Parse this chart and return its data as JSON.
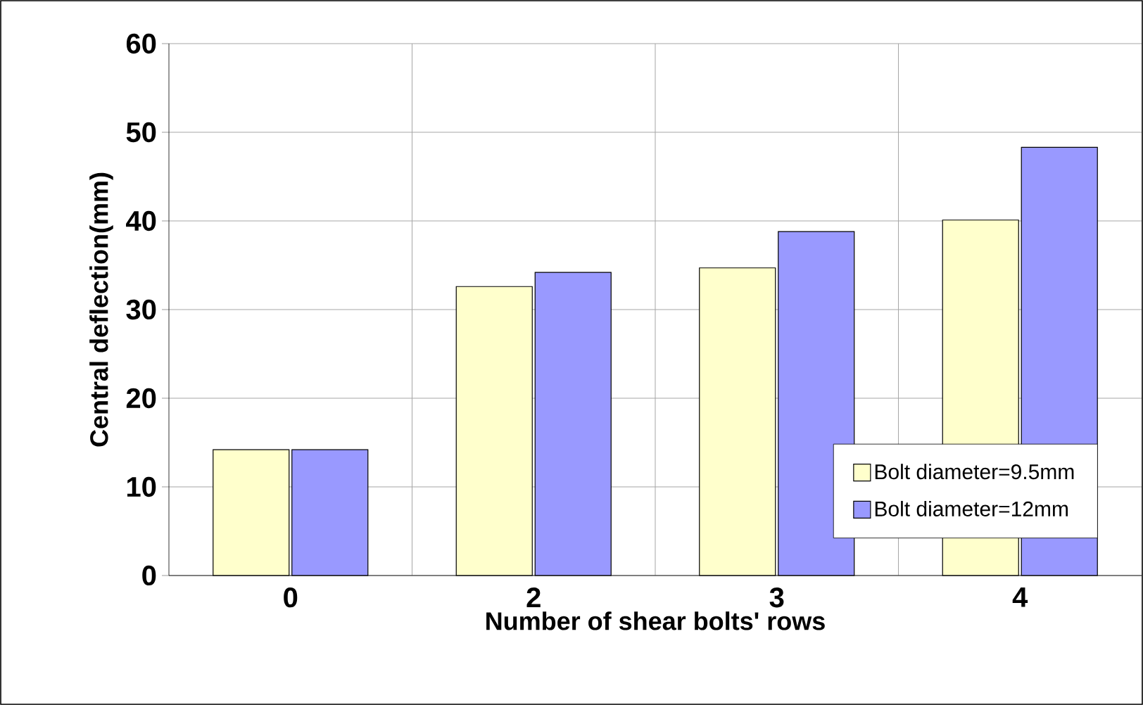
{
  "chart_data": {
    "type": "bar",
    "xlabel": "Number of shear bolts' rows",
    "ylabel": "Central deflection(mm)",
    "categories": [
      "0",
      "2",
      "3",
      "4"
    ],
    "series": [
      {
        "name": "Bolt diameter=9.5mm",
        "color": "#ffffcc",
        "values": [
          14.2,
          32.6,
          34.7,
          40.1
        ]
      },
      {
        "name": "Bolt diameter=12mm",
        "color": "#9999ff",
        "values": [
          14.2,
          34.2,
          38.8,
          48.3
        ]
      }
    ],
    "ylim": [
      0,
      60
    ],
    "yticks": [
      0,
      10,
      20,
      30,
      40,
      50,
      60
    ],
    "grid": true,
    "legend": "bottom right"
  }
}
